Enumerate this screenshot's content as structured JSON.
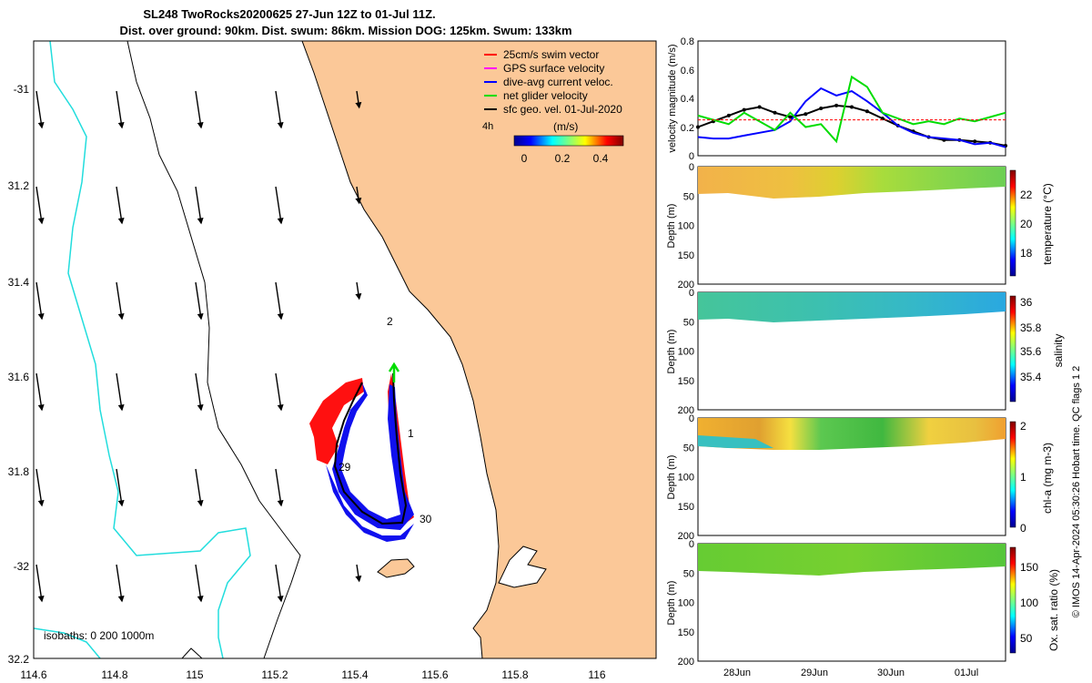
{
  "title": {
    "line1": "SL248 TwoRocks20200625 27-Jun 12Z to 01-Jul 11Z.",
    "line2": "Dist. over ground: 90km. Dist. swum: 86km. Mission DOG: 125km. Swum: 133km"
  },
  "map": {
    "lon_ticks": [
      "114.6",
      "114.8",
      "115",
      "115.2",
      "115.4",
      "115.6",
      "115.8",
      "116"
    ],
    "lat_ticks": [
      "-31",
      "31.2",
      "31.4",
      "31.6",
      "31.8",
      "-32",
      "32.2"
    ],
    "legend": [
      {
        "label": "25cm/s swim vector",
        "color": "#ff0000"
      },
      {
        "label": "GPS surface velocity",
        "color": "#ff00ff"
      },
      {
        "label": "dive-avg current veloc.",
        "color": "#0000ff"
      },
      {
        "label": "net glider velocity",
        "color": "#00dd00"
      },
      {
        "label": "sfc geo. vel. 01-Jul-2020",
        "color": "#000000"
      }
    ],
    "time_step": "4h",
    "colorbar_units": "(m/s)",
    "colorbar_ticks": [
      "0",
      "0.2",
      "0.4"
    ],
    "isobaths": "isobaths: 0   200  1000m",
    "day_labels": [
      "2",
      "1",
      "29",
      "30"
    ]
  },
  "panels": {
    "velocity_ylabel": "velocity magnitude (m/s)",
    "velocity_yticks": [
      "0.8",
      "0.6",
      "0.4",
      "0.2",
      "0"
    ],
    "depth_ylabel": "Depth (m)",
    "depth_ticks": [
      "0",
      "50",
      "100",
      "150",
      "200"
    ],
    "temperature": {
      "label": "temperature (°C)",
      "ticks": [
        "22",
        "20",
        "18"
      ]
    },
    "salinity": {
      "label": "salinity",
      "ticks": [
        "36",
        "35.8",
        "35.6",
        "35.4"
      ]
    },
    "chla": {
      "label": "chl-a (mg m-3)",
      "ticks": [
        "2",
        "1",
        "0"
      ]
    },
    "oxygen": {
      "label": "Ox. sat. ratio (%)",
      "ticks": [
        "150",
        "100",
        "50"
      ]
    },
    "date_ticks": [
      "28Jun",
      "29Jun",
      "30Jun",
      "01Jul"
    ]
  },
  "footer": "© IMOS 14-Apr-2024 05:30:26 Hobart time. QC flags 1  2",
  "chart_data": [
    {
      "type": "line",
      "title": "velocity magnitude",
      "xlabel": "",
      "ylabel": "velocity magnitude (m/s)",
      "ylim": [
        0,
        0.8
      ],
      "x": [
        "27.5",
        "27.7",
        "27.9",
        "28.1",
        "28.3",
        "28.5",
        "28.7",
        "28.9",
        "29.1",
        "29.3",
        "29.5",
        "29.7",
        "29.9",
        "30.1",
        "30.3",
        "30.5",
        "30.7",
        "30.9",
        "31.1",
        "31.3",
        "31.45"
      ],
      "series": [
        {
          "name": "sfc geo. vel.",
          "color": "#000000",
          "values": [
            0.2,
            0.24,
            0.28,
            0.32,
            0.34,
            0.3,
            0.27,
            0.29,
            0.33,
            0.35,
            0.34,
            0.31,
            0.26,
            0.21,
            0.17,
            0.13,
            0.11,
            0.11,
            0.1,
            0.09,
            0.07
          ]
        },
        {
          "name": "dive-avg current veloc.",
          "color": "#0000ff",
          "values": [
            0.13,
            0.12,
            0.12,
            0.14,
            0.16,
            0.18,
            0.24,
            0.38,
            0.47,
            0.42,
            0.45,
            0.38,
            0.3,
            0.21,
            0.16,
            0.13,
            0.12,
            0.11,
            0.08,
            0.09,
            0.06
          ]
        },
        {
          "name": "net glider velocity",
          "color": "#00dd00",
          "values": [
            0.28,
            0.25,
            0.22,
            0.3,
            0.24,
            0.18,
            0.3,
            0.2,
            0.22,
            0.1,
            0.55,
            0.48,
            0.3,
            0.26,
            0.22,
            0.24,
            0.22,
            0.26,
            0.24,
            0.27,
            0.3
          ]
        },
        {
          "name": "25cm/s swim vector",
          "color": "#ff0000",
          "values": [
            0.25,
            0.25,
            0.25,
            0.25,
            0.25,
            0.25,
            0.25,
            0.25,
            0.25,
            0.25,
            0.25,
            0.25,
            0.25,
            0.25,
            0.25,
            0.25,
            0.25,
            0.25,
            0.25,
            0.25,
            0.25
          ]
        }
      ]
    }
  ]
}
